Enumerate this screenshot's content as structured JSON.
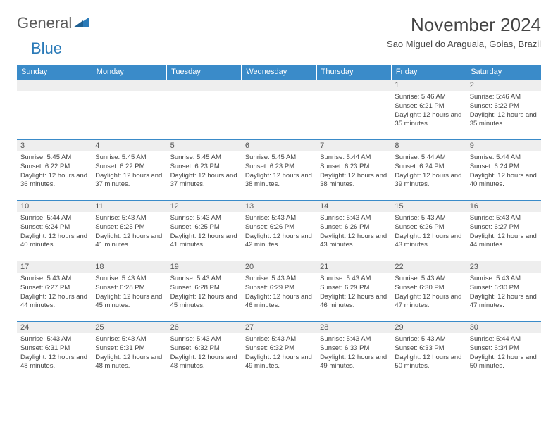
{
  "logo": {
    "word1": "General",
    "word2": "Blue"
  },
  "title": "November 2024",
  "location": "Sao Miguel do Araguaia, Goias, Brazil",
  "colors": {
    "header_bg": "#3a8bc9",
    "header_text": "#ffffff",
    "daynum_bg": "#eeeeee",
    "border": "#3a8bc9",
    "logo_gray": "#5a5a5a",
    "logo_blue": "#2a7ab8"
  },
  "weekdays": [
    "Sunday",
    "Monday",
    "Tuesday",
    "Wednesday",
    "Thursday",
    "Friday",
    "Saturday"
  ],
  "weeks": [
    [
      {
        "n": "",
        "sr": "",
        "ss": "",
        "dl": ""
      },
      {
        "n": "",
        "sr": "",
        "ss": "",
        "dl": ""
      },
      {
        "n": "",
        "sr": "",
        "ss": "",
        "dl": ""
      },
      {
        "n": "",
        "sr": "",
        "ss": "",
        "dl": ""
      },
      {
        "n": "",
        "sr": "",
        "ss": "",
        "dl": ""
      },
      {
        "n": "1",
        "sr": "Sunrise: 5:46 AM",
        "ss": "Sunset: 6:21 PM",
        "dl": "Daylight: 12 hours and 35 minutes."
      },
      {
        "n": "2",
        "sr": "Sunrise: 5:46 AM",
        "ss": "Sunset: 6:22 PM",
        "dl": "Daylight: 12 hours and 35 minutes."
      }
    ],
    [
      {
        "n": "3",
        "sr": "Sunrise: 5:45 AM",
        "ss": "Sunset: 6:22 PM",
        "dl": "Daylight: 12 hours and 36 minutes."
      },
      {
        "n": "4",
        "sr": "Sunrise: 5:45 AM",
        "ss": "Sunset: 6:22 PM",
        "dl": "Daylight: 12 hours and 37 minutes."
      },
      {
        "n": "5",
        "sr": "Sunrise: 5:45 AM",
        "ss": "Sunset: 6:23 PM",
        "dl": "Daylight: 12 hours and 37 minutes."
      },
      {
        "n": "6",
        "sr": "Sunrise: 5:45 AM",
        "ss": "Sunset: 6:23 PM",
        "dl": "Daylight: 12 hours and 38 minutes."
      },
      {
        "n": "7",
        "sr": "Sunrise: 5:44 AM",
        "ss": "Sunset: 6:23 PM",
        "dl": "Daylight: 12 hours and 38 minutes."
      },
      {
        "n": "8",
        "sr": "Sunrise: 5:44 AM",
        "ss": "Sunset: 6:24 PM",
        "dl": "Daylight: 12 hours and 39 minutes."
      },
      {
        "n": "9",
        "sr": "Sunrise: 5:44 AM",
        "ss": "Sunset: 6:24 PM",
        "dl": "Daylight: 12 hours and 40 minutes."
      }
    ],
    [
      {
        "n": "10",
        "sr": "Sunrise: 5:44 AM",
        "ss": "Sunset: 6:24 PM",
        "dl": "Daylight: 12 hours and 40 minutes."
      },
      {
        "n": "11",
        "sr": "Sunrise: 5:43 AM",
        "ss": "Sunset: 6:25 PM",
        "dl": "Daylight: 12 hours and 41 minutes."
      },
      {
        "n": "12",
        "sr": "Sunrise: 5:43 AM",
        "ss": "Sunset: 6:25 PM",
        "dl": "Daylight: 12 hours and 41 minutes."
      },
      {
        "n": "13",
        "sr": "Sunrise: 5:43 AM",
        "ss": "Sunset: 6:26 PM",
        "dl": "Daylight: 12 hours and 42 minutes."
      },
      {
        "n": "14",
        "sr": "Sunrise: 5:43 AM",
        "ss": "Sunset: 6:26 PM",
        "dl": "Daylight: 12 hours and 43 minutes."
      },
      {
        "n": "15",
        "sr": "Sunrise: 5:43 AM",
        "ss": "Sunset: 6:26 PM",
        "dl": "Daylight: 12 hours and 43 minutes."
      },
      {
        "n": "16",
        "sr": "Sunrise: 5:43 AM",
        "ss": "Sunset: 6:27 PM",
        "dl": "Daylight: 12 hours and 44 minutes."
      }
    ],
    [
      {
        "n": "17",
        "sr": "Sunrise: 5:43 AM",
        "ss": "Sunset: 6:27 PM",
        "dl": "Daylight: 12 hours and 44 minutes."
      },
      {
        "n": "18",
        "sr": "Sunrise: 5:43 AM",
        "ss": "Sunset: 6:28 PM",
        "dl": "Daylight: 12 hours and 45 minutes."
      },
      {
        "n": "19",
        "sr": "Sunrise: 5:43 AM",
        "ss": "Sunset: 6:28 PM",
        "dl": "Daylight: 12 hours and 45 minutes."
      },
      {
        "n": "20",
        "sr": "Sunrise: 5:43 AM",
        "ss": "Sunset: 6:29 PM",
        "dl": "Daylight: 12 hours and 46 minutes."
      },
      {
        "n": "21",
        "sr": "Sunrise: 5:43 AM",
        "ss": "Sunset: 6:29 PM",
        "dl": "Daylight: 12 hours and 46 minutes."
      },
      {
        "n": "22",
        "sr": "Sunrise: 5:43 AM",
        "ss": "Sunset: 6:30 PM",
        "dl": "Daylight: 12 hours and 47 minutes."
      },
      {
        "n": "23",
        "sr": "Sunrise: 5:43 AM",
        "ss": "Sunset: 6:30 PM",
        "dl": "Daylight: 12 hours and 47 minutes."
      }
    ],
    [
      {
        "n": "24",
        "sr": "Sunrise: 5:43 AM",
        "ss": "Sunset: 6:31 PM",
        "dl": "Daylight: 12 hours and 48 minutes."
      },
      {
        "n": "25",
        "sr": "Sunrise: 5:43 AM",
        "ss": "Sunset: 6:31 PM",
        "dl": "Daylight: 12 hours and 48 minutes."
      },
      {
        "n": "26",
        "sr": "Sunrise: 5:43 AM",
        "ss": "Sunset: 6:32 PM",
        "dl": "Daylight: 12 hours and 48 minutes."
      },
      {
        "n": "27",
        "sr": "Sunrise: 5:43 AM",
        "ss": "Sunset: 6:32 PM",
        "dl": "Daylight: 12 hours and 49 minutes."
      },
      {
        "n": "28",
        "sr": "Sunrise: 5:43 AM",
        "ss": "Sunset: 6:33 PM",
        "dl": "Daylight: 12 hours and 49 minutes."
      },
      {
        "n": "29",
        "sr": "Sunrise: 5:43 AM",
        "ss": "Sunset: 6:33 PM",
        "dl": "Daylight: 12 hours and 50 minutes."
      },
      {
        "n": "30",
        "sr": "Sunrise: 5:44 AM",
        "ss": "Sunset: 6:34 PM",
        "dl": "Daylight: 12 hours and 50 minutes."
      }
    ]
  ]
}
